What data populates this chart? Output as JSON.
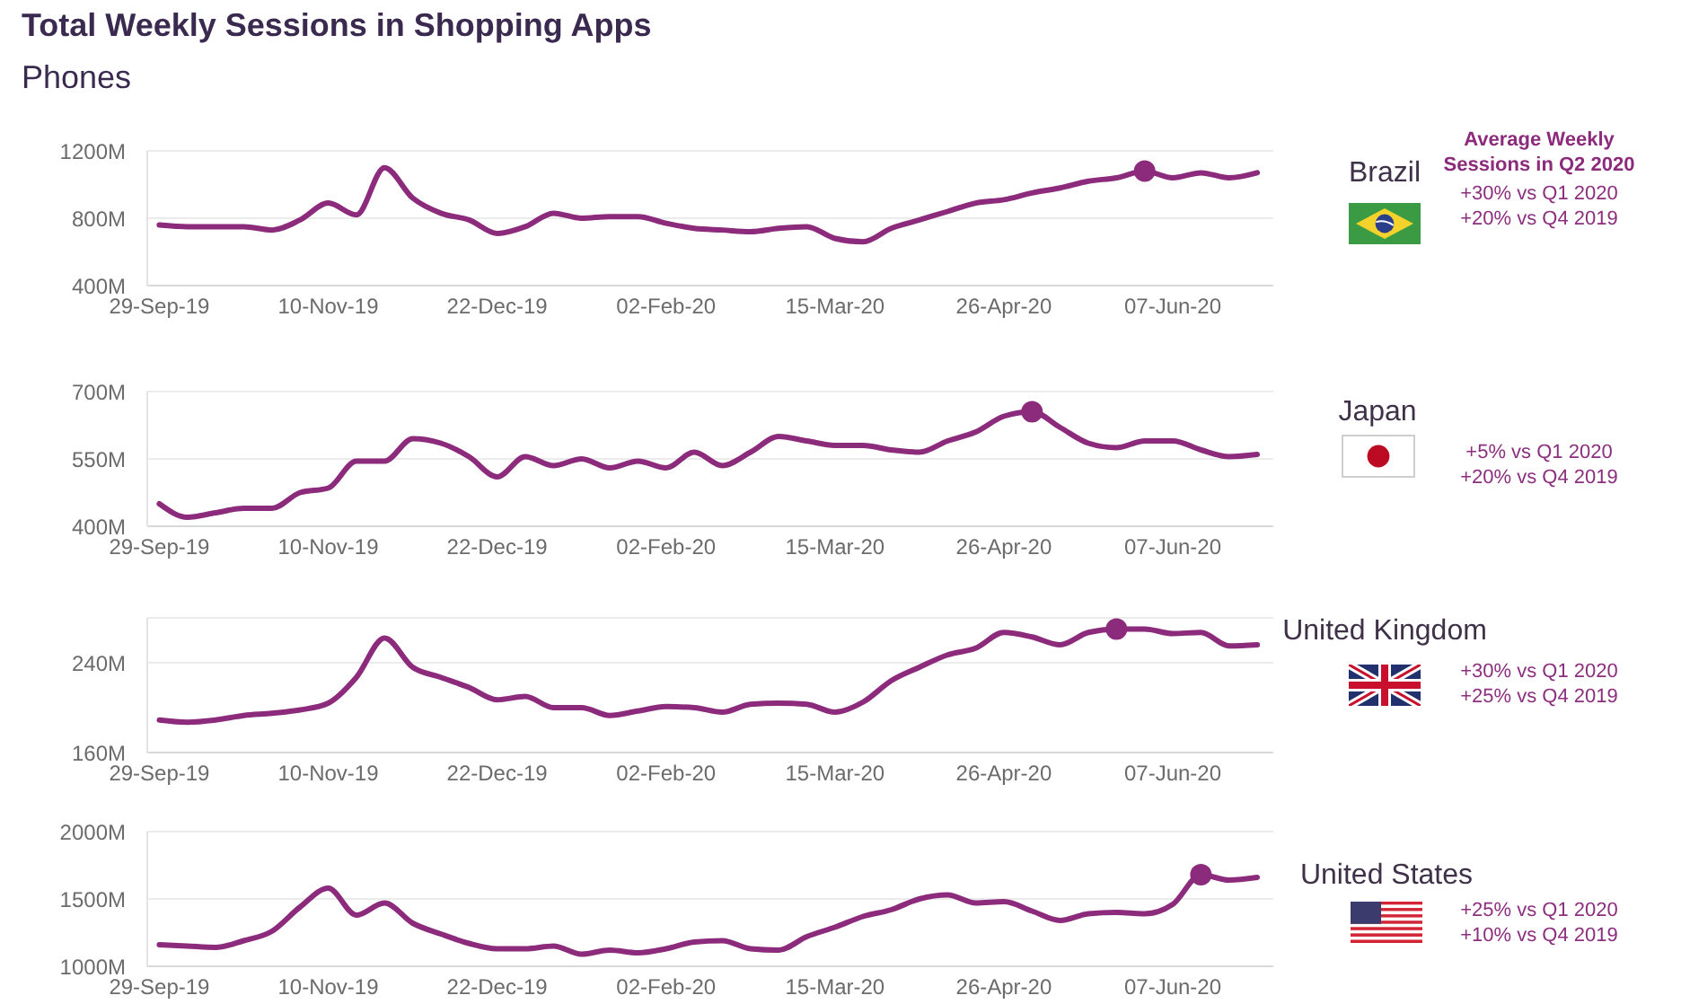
{
  "chart_data": [
    {
      "type": "line",
      "title": "Total Weekly Sessions in Shopping Apps",
      "subtitle": "Phones",
      "x": [
        "2019-09-29",
        "2019-10-06",
        "2019-10-13",
        "2019-10-20",
        "2019-10-27",
        "2019-11-03",
        "2019-11-10",
        "2019-11-17",
        "2019-11-24",
        "2019-12-01",
        "2019-12-08",
        "2019-12-15",
        "2019-12-22",
        "2019-12-29",
        "2020-01-05",
        "2020-01-12",
        "2020-01-19",
        "2020-01-26",
        "2020-02-02",
        "2020-02-09",
        "2020-02-16",
        "2020-02-23",
        "2020-03-01",
        "2020-03-08",
        "2020-03-15",
        "2020-03-22",
        "2020-03-29",
        "2020-04-05",
        "2020-04-12",
        "2020-04-19",
        "2020-04-26",
        "2020-05-03",
        "2020-05-10",
        "2020-05-17",
        "2020-05-24",
        "2020-05-31",
        "2020-06-07",
        "2020-06-14",
        "2020-06-21",
        "2020-06-28"
      ],
      "series": [
        {
          "name": "Brazil",
          "color": "#8c2a7c",
          "values": [
            760,
            750,
            750,
            750,
            730,
            790,
            890,
            820,
            1100,
            920,
            830,
            790,
            710,
            750,
            830,
            800,
            810,
            810,
            770,
            740,
            730,
            720,
            740,
            750,
            680,
            660,
            740,
            790,
            840,
            890,
            910,
            950,
            980,
            1020,
            1040,
            1080,
            1040,
            1070,
            1040,
            1070
          ]
        },
        {
          "type": "scatter",
          "color": "#8c2a7c",
          "x": [
            "2020-05-31"
          ],
          "values": [
            1080
          ]
        }
      ],
      "xlim": [
        "2019-09-26",
        "2020-07-02"
      ],
      "xticks": [
        {
          "value": "2019-09-29",
          "label": "29-Sep-19"
        },
        {
          "value": "2019-11-10",
          "label": "10-Nov-19"
        },
        {
          "value": "2019-12-22",
          "label": "22-Dec-19"
        },
        {
          "value": "2020-02-02",
          "label": "02-Feb-20"
        },
        {
          "value": "2020-03-15",
          "label": "15-Mar-20"
        },
        {
          "value": "2020-04-26",
          "label": "26-Apr-20"
        },
        {
          "value": "2020-06-07",
          "label": "07-Jun-20"
        }
      ],
      "ylim": [
        400,
        1200
      ],
      "yticks": [
        {
          "value": 400,
          "label": "400M"
        },
        {
          "value": 800,
          "label": "800M"
        },
        {
          "value": 1200,
          "label": "1200M"
        }
      ],
      "grid": "y",
      "line_style": "solid",
      "annotations": [
        "Average Weekly Sessions in Q2 2020",
        "+30% vs Q1 2020",
        "+20% vs Q4 2019"
      ]
    },
    {
      "type": "line",
      "x": [
        "2019-09-29",
        "2019-10-06",
        "2019-10-13",
        "2019-10-20",
        "2019-10-27",
        "2019-11-03",
        "2019-11-10",
        "2019-11-17",
        "2019-11-24",
        "2019-12-01",
        "2019-12-08",
        "2019-12-15",
        "2019-12-22",
        "2019-12-29",
        "2020-01-05",
        "2020-01-12",
        "2020-01-19",
        "2020-01-26",
        "2020-02-02",
        "2020-02-09",
        "2020-02-16",
        "2020-02-23",
        "2020-03-01",
        "2020-03-08",
        "2020-03-15",
        "2020-03-22",
        "2020-03-29",
        "2020-04-05",
        "2020-04-12",
        "2020-04-19",
        "2020-04-26",
        "2020-05-03",
        "2020-05-10",
        "2020-05-17",
        "2020-05-24",
        "2020-05-31",
        "2020-06-07",
        "2020-06-14",
        "2020-06-21",
        "2020-06-28"
      ],
      "series": [
        {
          "name": "Japan",
          "color": "#8c2a7c",
          "values": [
            450,
            420,
            430,
            440,
            440,
            475,
            485,
            545,
            545,
            595,
            585,
            555,
            510,
            555,
            535,
            550,
            530,
            545,
            530,
            565,
            535,
            565,
            600,
            590,
            580,
            580,
            570,
            565,
            590,
            610,
            645,
            655,
            620,
            585,
            575,
            590,
            590,
            570,
            555,
            560
          ]
        },
        {
          "type": "scatter",
          "color": "#8c2a7c",
          "x": [
            "2020-05-03"
          ],
          "values": [
            655
          ]
        }
      ],
      "xlim": [
        "2019-09-26",
        "2020-07-02"
      ],
      "xticks": [
        {
          "value": "2019-09-29",
          "label": "29-Sep-19"
        },
        {
          "value": "2019-11-10",
          "label": "10-Nov-19"
        },
        {
          "value": "2019-12-22",
          "label": "22-Dec-19"
        },
        {
          "value": "2020-02-02",
          "label": "02-Feb-20"
        },
        {
          "value": "2020-03-15",
          "label": "15-Mar-20"
        },
        {
          "value": "2020-04-26",
          "label": "26-Apr-20"
        },
        {
          "value": "2020-06-07",
          "label": "07-Jun-20"
        }
      ],
      "ylim": [
        400,
        700
      ],
      "yticks": [
        {
          "value": 400,
          "label": "400M"
        },
        {
          "value": 550,
          "label": "550M"
        },
        {
          "value": 700,
          "label": "700M"
        }
      ],
      "grid": "y",
      "line_style": "solid",
      "annotations": [
        "+5% vs Q1 2020",
        "+20% vs Q4 2019"
      ]
    },
    {
      "type": "line",
      "x": [
        "2019-09-29",
        "2019-10-06",
        "2019-10-13",
        "2019-10-20",
        "2019-10-27",
        "2019-11-03",
        "2019-11-10",
        "2019-11-17",
        "2019-11-24",
        "2019-12-01",
        "2019-12-08",
        "2019-12-15",
        "2019-12-22",
        "2019-12-29",
        "2020-01-05",
        "2020-01-12",
        "2020-01-19",
        "2020-01-26",
        "2020-02-02",
        "2020-02-09",
        "2020-02-16",
        "2020-02-23",
        "2020-03-01",
        "2020-03-08",
        "2020-03-15",
        "2020-03-22",
        "2020-03-29",
        "2020-04-05",
        "2020-04-12",
        "2020-04-19",
        "2020-04-26",
        "2020-05-03",
        "2020-05-10",
        "2020-05-17",
        "2020-05-24",
        "2020-05-31",
        "2020-06-07",
        "2020-06-14",
        "2020-06-21",
        "2020-06-28"
      ],
      "series": [
        {
          "name": "United Kingdom",
          "color": "#8c2a7c",
          "values": [
            189,
            187,
            189,
            193,
            195,
            198,
            204,
            227,
            262,
            236,
            227,
            218,
            207,
            210,
            200,
            200,
            193,
            197,
            201,
            200,
            196,
            203,
            204,
            203,
            196,
            205,
            224,
            236,
            247,
            253,
            267,
            263,
            256,
            267,
            270,
            270,
            266,
            267,
            255,
            256
          ]
        },
        {
          "type": "scatter",
          "color": "#8c2a7c",
          "x": [
            "2020-05-24"
          ],
          "values": [
            270
          ]
        }
      ],
      "xlim": [
        "2019-09-26",
        "2020-07-02"
      ],
      "xticks": [
        {
          "value": "2019-09-29",
          "label": "29-Sep-19"
        },
        {
          "value": "2019-11-10",
          "label": "10-Nov-19"
        },
        {
          "value": "2019-12-22",
          "label": "22-Dec-19"
        },
        {
          "value": "2020-02-02",
          "label": "02-Feb-20"
        },
        {
          "value": "2020-03-15",
          "label": "15-Mar-20"
        },
        {
          "value": "2020-04-26",
          "label": "26-Apr-20"
        },
        {
          "value": "2020-06-07",
          "label": "07-Jun-20"
        }
      ],
      "ylim": [
        160,
        280
      ],
      "yticks": [
        {
          "value": 160,
          "label": "160M"
        },
        {
          "value": 240,
          "label": "240M"
        }
      ],
      "grid": "y",
      "line_style": "solid",
      "annotations": [
        "+30% vs Q1 2020",
        "+25% vs Q4 2019"
      ]
    },
    {
      "type": "line",
      "x": [
        "2019-09-29",
        "2019-10-06",
        "2019-10-13",
        "2019-10-20",
        "2019-10-27",
        "2019-11-03",
        "2019-11-10",
        "2019-11-17",
        "2019-11-24",
        "2019-12-01",
        "2019-12-08",
        "2019-12-15",
        "2019-12-22",
        "2019-12-29",
        "2020-01-05",
        "2020-01-12",
        "2020-01-19",
        "2020-01-26",
        "2020-02-02",
        "2020-02-09",
        "2020-02-16",
        "2020-02-23",
        "2020-03-01",
        "2020-03-08",
        "2020-03-15",
        "2020-03-22",
        "2020-03-29",
        "2020-04-05",
        "2020-04-12",
        "2020-04-19",
        "2020-04-26",
        "2020-05-03",
        "2020-05-10",
        "2020-05-17",
        "2020-05-24",
        "2020-05-31",
        "2020-06-07",
        "2020-06-14",
        "2020-06-21",
        "2020-06-28"
      ],
      "series": [
        {
          "name": "United States",
          "color": "#8c2a7c",
          "values": [
            1160,
            1150,
            1140,
            1190,
            1260,
            1440,
            1580,
            1380,
            1470,
            1320,
            1240,
            1170,
            1130,
            1130,
            1150,
            1090,
            1120,
            1100,
            1130,
            1180,
            1190,
            1130,
            1120,
            1220,
            1290,
            1370,
            1420,
            1500,
            1530,
            1470,
            1480,
            1410,
            1340,
            1390,
            1400,
            1390,
            1460,
            1680,
            1640,
            1660
          ]
        },
        {
          "type": "scatter",
          "color": "#8c2a7c",
          "x": [
            "2020-06-14"
          ],
          "values": [
            1680
          ]
        }
      ],
      "xlim": [
        "2019-09-26",
        "2020-07-02"
      ],
      "xticks": [
        {
          "value": "2019-09-29",
          "label": "29-Sep-19"
        },
        {
          "value": "2019-11-10",
          "label": "10-Nov-19"
        },
        {
          "value": "2019-12-22",
          "label": "22-Dec-19"
        },
        {
          "value": "2020-02-02",
          "label": "02-Feb-20"
        },
        {
          "value": "2020-03-15",
          "label": "15-Mar-20"
        },
        {
          "value": "2020-04-26",
          "label": "26-Apr-20"
        },
        {
          "value": "2020-06-07",
          "label": "07-Jun-20"
        }
      ],
      "ylim": [
        1000,
        2000
      ],
      "yticks": [
        {
          "value": 1000,
          "label": "1000M"
        },
        {
          "value": 1500,
          "label": "1500M"
        },
        {
          "value": 2000,
          "label": "2000M"
        }
      ],
      "grid": "y",
      "line_style": "solid",
      "annotations": [
        "+25% vs Q1 2020",
        "+10% vs Q4 2019"
      ]
    }
  ]
}
